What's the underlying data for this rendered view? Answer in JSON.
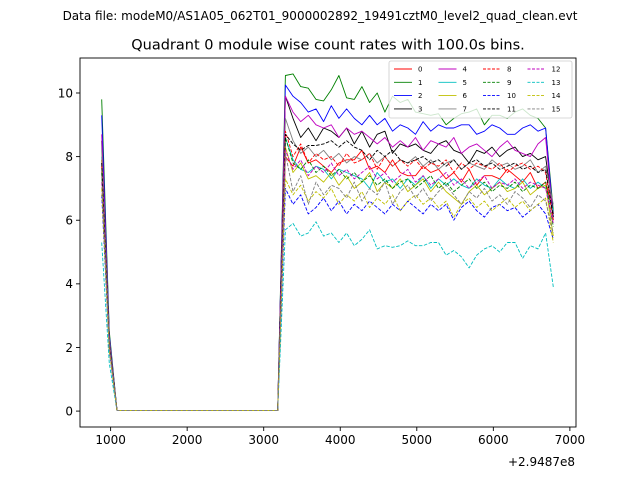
{
  "figure": {
    "suptitle": "Data file: modeM0/AS1A05_062T01_9000002892_19491cztM0_level2_quad_clean.evt"
  },
  "chart_data": {
    "type": "line",
    "title": "Quadrant 0 module wise count rates with 100.0s bins.",
    "xlabel": "",
    "ylabel": "",
    "x_offset_label": "+2.9487e8",
    "xlim": [
      600,
      7080
    ],
    "ylim": [
      -0.5,
      11.1
    ],
    "xticks": [
      1000,
      2000,
      3000,
      4000,
      5000,
      6000,
      7000
    ],
    "xtick_labels": [
      "1000",
      "2000",
      "3000",
      "4000",
      "5000",
      "6000",
      "7000"
    ],
    "yticks": [
      0,
      2,
      4,
      6,
      8,
      10
    ],
    "ytick_labels": [
      "0",
      "2",
      "4",
      "6",
      "8",
      "10"
    ],
    "grid": false,
    "legend_position": "top-right",
    "legend_columns": 4,
    "x": [
      883,
      983,
      1083,
      1183,
      1283,
      1383,
      1483,
      1583,
      1683,
      1783,
      1883,
      1983,
      2083,
      2183,
      2283,
      2383,
      2483,
      2583,
      2683,
      2783,
      2883,
      2983,
      3083,
      3183,
      3283,
      3383,
      3483,
      3583,
      3683,
      3783,
      3883,
      3983,
      4083,
      4183,
      4283,
      4383,
      4483,
      4583,
      4683,
      4783,
      4883,
      4983,
      5083,
      5183,
      5283,
      5383,
      5483,
      5583,
      5683,
      5783,
      5883,
      5983,
      6083,
      6183,
      6283,
      6383,
      6483,
      6583,
      6683,
      6783
    ],
    "series": [
      {
        "name": "0",
        "color": "#ff0000",
        "dash": false,
        "values": [
          7.9,
          2.2,
          0.02,
          0.02,
          0.02,
          0.02,
          0.02,
          0.02,
          0.02,
          0.02,
          0.02,
          0.02,
          0.02,
          0.02,
          0.02,
          0.02,
          0.02,
          0.02,
          0.02,
          0.02,
          0.02,
          0.02,
          0.02,
          0.02,
          8.0,
          7.7,
          8.3,
          7.8,
          7.9,
          7.7,
          7.5,
          7.8,
          7.9,
          7.9,
          8.2,
          7.6,
          7.7,
          7.5,
          7.9,
          7.5,
          7.4,
          7.4,
          7.7,
          7.5,
          7.6,
          7.3,
          7.5,
          7.2,
          7.6,
          7.1,
          7.4,
          7.4,
          7.3,
          7.6,
          7.4,
          7.2,
          7.5,
          7.0,
          7.2,
          6.2
        ]
      },
      {
        "name": "1",
        "color": "#008000",
        "dash": false,
        "values": [
          9.8,
          2.5,
          0.02,
          0.02,
          0.02,
          0.02,
          0.02,
          0.02,
          0.02,
          0.02,
          0.02,
          0.02,
          0.02,
          0.02,
          0.02,
          0.02,
          0.02,
          0.02,
          0.02,
          0.02,
          0.02,
          0.02,
          0.02,
          0.02,
          10.55,
          10.6,
          10.2,
          10.15,
          9.8,
          9.75,
          10.1,
          10.55,
          9.85,
          9.8,
          10.2,
          9.7,
          10.0,
          9.4,
          9.9,
          9.7,
          9.8,
          9.4,
          9.35,
          9.3,
          9.35,
          9.0,
          9.2,
          9.35,
          9.4,
          9.5,
          9.0,
          9.3,
          9.3,
          9.2,
          9.4,
          9.5,
          9.3,
          9.2,
          8.9,
          6.3
        ]
      },
      {
        "name": "2",
        "color": "#0000ff",
        "dash": false,
        "values": [
          9.3,
          2.4,
          0.02,
          0.02,
          0.02,
          0.02,
          0.02,
          0.02,
          0.02,
          0.02,
          0.02,
          0.02,
          0.02,
          0.02,
          0.02,
          0.02,
          0.02,
          0.02,
          0.02,
          0.02,
          0.02,
          0.02,
          0.02,
          0.02,
          10.25,
          9.9,
          9.7,
          9.4,
          9.5,
          9.1,
          9.6,
          9.2,
          9.5,
          9.2,
          9.0,
          9.3,
          9.0,
          9.2,
          8.8,
          9.0,
          8.9,
          8.7,
          9.1,
          8.8,
          9.0,
          8.9,
          8.9,
          9.0,
          9.0,
          8.7,
          8.8,
          9.0,
          8.9,
          8.7,
          8.7,
          8.9,
          9.0,
          8.8,
          8.9,
          6.1
        ]
      },
      {
        "name": "3",
        "color": "#000000",
        "dash": false,
        "values": [
          8.5,
          2.3,
          0.02,
          0.02,
          0.02,
          0.02,
          0.02,
          0.02,
          0.02,
          0.02,
          0.02,
          0.02,
          0.02,
          0.02,
          0.02,
          0.02,
          0.02,
          0.02,
          0.02,
          0.02,
          0.02,
          0.02,
          0.02,
          0.02,
          9.9,
          9.2,
          8.6,
          8.9,
          8.5,
          8.9,
          8.8,
          8.6,
          8.9,
          8.4,
          8.8,
          8.3,
          8.7,
          8.8,
          8.1,
          8.4,
          8.3,
          8.4,
          8.2,
          8.1,
          8.4,
          8.5,
          8.2,
          8.1,
          7.8,
          8.2,
          8.1,
          8.3,
          8.0,
          8.2,
          8.3,
          8.0,
          8.1,
          7.9,
          8.0,
          6.2
        ]
      },
      {
        "name": "4",
        "color": "#bf00bf",
        "dash": false,
        "values": [
          8.7,
          2.3,
          0.02,
          0.02,
          0.02,
          0.02,
          0.02,
          0.02,
          0.02,
          0.02,
          0.02,
          0.02,
          0.02,
          0.02,
          0.02,
          0.02,
          0.02,
          0.02,
          0.02,
          0.02,
          0.02,
          0.02,
          0.02,
          0.02,
          9.9,
          9.4,
          9.1,
          9.3,
          9.0,
          8.9,
          9.0,
          8.6,
          8.9,
          8.7,
          8.8,
          8.6,
          8.4,
          8.6,
          8.3,
          8.5,
          8.3,
          8.6,
          8.2,
          8.5,
          8.4,
          8.3,
          8.6,
          8.1,
          8.3,
          8.4,
          8.2,
          8.0,
          8.3,
          8.5,
          8.2,
          8.1,
          8.0,
          8.4,
          8.6,
          6.0
        ]
      },
      {
        "name": "5",
        "color": "#00bfbf",
        "dash": false,
        "values": [
          8.0,
          2.2,
          0.02,
          0.02,
          0.02,
          0.02,
          0.02,
          0.02,
          0.02,
          0.02,
          0.02,
          0.02,
          0.02,
          0.02,
          0.02,
          0.02,
          0.02,
          0.02,
          0.02,
          0.02,
          0.02,
          0.02,
          0.02,
          0.02,
          8.6,
          7.9,
          7.6,
          7.5,
          7.7,
          7.6,
          7.3,
          7.6,
          7.5,
          7.4,
          7.3,
          7.0,
          7.5,
          7.2,
          7.3,
          7.0,
          7.3,
          7.1,
          7.4,
          7.0,
          7.3,
          7.1,
          7.3,
          7.1,
          7.0,
          7.3,
          7.1,
          7.0,
          7.3,
          7.1,
          7.0,
          7.3,
          7.0,
          7.2,
          7.0,
          6.3
        ]
      },
      {
        "name": "6",
        "color": "#bfbf00",
        "dash": false,
        "values": [
          7.9,
          2.1,
          0.02,
          0.02,
          0.02,
          0.02,
          0.02,
          0.02,
          0.02,
          0.02,
          0.02,
          0.02,
          0.02,
          0.02,
          0.02,
          0.02,
          0.02,
          0.02,
          0.02,
          0.02,
          0.02,
          0.02,
          0.02,
          0.02,
          8.3,
          7.5,
          7.8,
          7.3,
          7.4,
          7.2,
          7.5,
          7.1,
          7.4,
          7.0,
          7.2,
          7.5,
          6.9,
          7.2,
          7.0,
          7.3,
          6.9,
          7.1,
          7.3,
          6.9,
          7.2,
          6.9,
          6.7,
          6.5,
          6.9,
          7.1,
          6.8,
          7.0,
          7.2,
          6.9,
          7.0,
          7.2,
          6.8,
          7.0,
          7.1,
          5.5
        ]
      },
      {
        "name": "7",
        "color": "#808080",
        "dash": false,
        "values": [
          8.2,
          2.2,
          0.02,
          0.02,
          0.02,
          0.02,
          0.02,
          0.02,
          0.02,
          0.02,
          0.02,
          0.02,
          0.02,
          0.02,
          0.02,
          0.02,
          0.02,
          0.02,
          0.02,
          0.02,
          0.02,
          0.02,
          0.02,
          0.02,
          9.2,
          8.5,
          8.1,
          8.3,
          8.0,
          8.2,
          7.9,
          8.1,
          7.8,
          8.0,
          7.9,
          8.1,
          7.8,
          8.0,
          7.7,
          7.9,
          7.8,
          8.0,
          7.7,
          7.9,
          7.6,
          7.8,
          7.9,
          7.6,
          7.8,
          7.7,
          7.6,
          7.9,
          7.7,
          7.8,
          7.6,
          7.7,
          7.9,
          7.5,
          7.7,
          6.5
        ]
      },
      {
        "name": "8",
        "color": "#ff0000",
        "dash": true,
        "values": [
          7.7,
          2.1,
          0.02,
          0.02,
          0.02,
          0.02,
          0.02,
          0.02,
          0.02,
          0.02,
          0.02,
          0.02,
          0.02,
          0.02,
          0.02,
          0.02,
          0.02,
          0.02,
          0.02,
          0.02,
          0.02,
          0.02,
          0.02,
          0.02,
          8.8,
          8.0,
          8.4,
          7.8,
          8.1,
          7.9,
          8.0,
          7.7,
          8.1,
          7.8,
          7.9,
          8.1,
          7.6,
          8.0,
          7.7,
          7.9,
          7.7,
          7.9,
          7.6,
          7.8,
          7.7,
          7.9,
          7.5,
          7.8,
          7.6,
          7.8,
          7.7,
          7.6,
          7.8,
          7.5,
          7.7,
          7.8,
          7.6,
          7.7,
          7.5,
          6.0
        ]
      },
      {
        "name": "9",
        "color": "#008000",
        "dash": true,
        "values": [
          7.5,
          2.0,
          0.02,
          0.02,
          0.02,
          0.02,
          0.02,
          0.02,
          0.02,
          0.02,
          0.02,
          0.02,
          0.02,
          0.02,
          0.02,
          0.02,
          0.02,
          0.02,
          0.02,
          0.02,
          0.02,
          0.02,
          0.02,
          0.02,
          8.6,
          7.8,
          7.6,
          7.9,
          7.5,
          7.7,
          7.4,
          7.6,
          7.3,
          7.5,
          7.2,
          7.4,
          7.1,
          7.3,
          7.0,
          7.2,
          7.3,
          7.0,
          7.2,
          7.4,
          7.0,
          7.2,
          6.9,
          7.1,
          7.3,
          7.0,
          7.2,
          6.9,
          7.1,
          7.0,
          7.2,
          6.9,
          7.1,
          7.0,
          7.2,
          5.8
        ]
      },
      {
        "name": "10",
        "color": "#0000ff",
        "dash": true,
        "values": [
          6.8,
          1.9,
          0.02,
          0.02,
          0.02,
          0.02,
          0.02,
          0.02,
          0.02,
          0.02,
          0.02,
          0.02,
          0.02,
          0.02,
          0.02,
          0.02,
          0.02,
          0.02,
          0.02,
          0.02,
          0.02,
          0.02,
          0.02,
          0.02,
          7.0,
          6.5,
          6.8,
          6.2,
          6.4,
          6.7,
          6.3,
          6.6,
          6.2,
          6.5,
          6.3,
          6.6,
          6.4,
          6.2,
          6.5,
          6.3,
          6.6,
          6.4,
          6.2,
          6.5,
          6.3,
          6.5,
          6.0,
          6.4,
          6.6,
          6.3,
          6.1,
          6.4,
          6.5,
          6.3,
          6.4,
          6.1,
          6.3,
          6.5,
          6.2,
          5.4
        ]
      },
      {
        "name": "11",
        "color": "#000000",
        "dash": true,
        "values": [
          7.8,
          2.1,
          0.02,
          0.02,
          0.02,
          0.02,
          0.02,
          0.02,
          0.02,
          0.02,
          0.02,
          0.02,
          0.02,
          0.02,
          0.02,
          0.02,
          0.02,
          0.02,
          0.02,
          0.02,
          0.02,
          0.02,
          0.02,
          0.02,
          8.7,
          8.4,
          8.2,
          8.35,
          8.35,
          8.4,
          8.5,
          8.3,
          8.5,
          8.3,
          8.2,
          7.9,
          8.2,
          8.0,
          8.2,
          7.9,
          7.8,
          7.9,
          8.0,
          7.8,
          7.9,
          7.7,
          7.9,
          7.6,
          7.8,
          7.9,
          7.7,
          7.8,
          7.6,
          7.7,
          7.8,
          7.6,
          7.7,
          7.5,
          7.6,
          6.1
        ]
      },
      {
        "name": "12",
        "color": "#bf00bf",
        "dash": true,
        "values": [
          7.2,
          2.0,
          0.02,
          0.02,
          0.02,
          0.02,
          0.02,
          0.02,
          0.02,
          0.02,
          0.02,
          0.02,
          0.02,
          0.02,
          0.02,
          0.02,
          0.02,
          0.02,
          0.02,
          0.02,
          0.02,
          0.02,
          0.02,
          0.02,
          8.2,
          7.6,
          7.9,
          7.4,
          7.7,
          7.5,
          7.8,
          7.4,
          7.6,
          7.3,
          7.5,
          7.7,
          7.3,
          7.5,
          7.2,
          7.4,
          7.6,
          7.2,
          7.4,
          7.1,
          7.3,
          7.5,
          7.1,
          7.3,
          7.0,
          7.2,
          7.4,
          7.0,
          7.2,
          7.1,
          7.3,
          7.0,
          7.2,
          7.1,
          7.0,
          5.9
        ]
      },
      {
        "name": "13",
        "color": "#00bfbf",
        "dash": true,
        "values": [
          5.3,
          1.5,
          0.02,
          0.02,
          0.02,
          0.02,
          0.02,
          0.02,
          0.02,
          0.02,
          0.02,
          0.02,
          0.02,
          0.02,
          0.02,
          0.02,
          0.02,
          0.02,
          0.02,
          0.02,
          0.02,
          0.02,
          0.02,
          0.02,
          5.7,
          5.9,
          5.5,
          5.6,
          5.95,
          5.5,
          5.6,
          5.3,
          5.6,
          5.2,
          5.4,
          5.7,
          5.1,
          5.2,
          5.15,
          5.2,
          5.35,
          5.2,
          5.2,
          5.3,
          5.3,
          4.9,
          5.05,
          4.85,
          4.5,
          4.9,
          5.1,
          5.2,
          5.0,
          5.3,
          5.3,
          4.8,
          5.2,
          5.1,
          5.6,
          3.9
        ]
      },
      {
        "name": "14",
        "color": "#bfbf00",
        "dash": true,
        "values": [
          7.0,
          1.9,
          0.02,
          0.02,
          0.02,
          0.02,
          0.02,
          0.02,
          0.02,
          0.02,
          0.02,
          0.02,
          0.02,
          0.02,
          0.02,
          0.02,
          0.02,
          0.02,
          0.02,
          0.02,
          0.02,
          0.02,
          0.02,
          0.02,
          7.3,
          6.8,
          7.1,
          6.6,
          6.9,
          6.7,
          7.0,
          6.5,
          6.8,
          6.6,
          6.9,
          6.4,
          6.7,
          6.5,
          6.8,
          6.3,
          6.6,
          6.8,
          6.5,
          6.7,
          6.4,
          6.6,
          6.1,
          6.5,
          6.7,
          6.4,
          6.6,
          6.3,
          6.5,
          6.7,
          6.4,
          6.6,
          6.3,
          6.5,
          6.7,
          5.3
        ]
      },
      {
        "name": "15",
        "color": "#808080",
        "dash": true,
        "values": [
          7.4,
          2.0,
          0.02,
          0.02,
          0.02,
          0.02,
          0.02,
          0.02,
          0.02,
          0.02,
          0.02,
          0.02,
          0.02,
          0.02,
          0.02,
          0.02,
          0.02,
          0.02,
          0.02,
          0.02,
          0.02,
          0.02,
          0.02,
          0.02,
          8.1,
          6.9,
          7.4,
          6.5,
          7.2,
          6.8,
          7.1,
          7.0,
          6.7,
          7.2,
          6.6,
          7.0,
          6.8,
          7.2,
          6.5,
          6.9,
          7.1,
          6.7,
          7.0,
          6.6,
          6.9,
          7.1,
          6.8,
          6.5,
          6.9,
          6.7,
          7.0,
          6.6,
          6.8,
          6.5,
          6.9,
          6.7,
          6.4,
          6.8,
          6.6,
          5.6
        ]
      }
    ]
  }
}
